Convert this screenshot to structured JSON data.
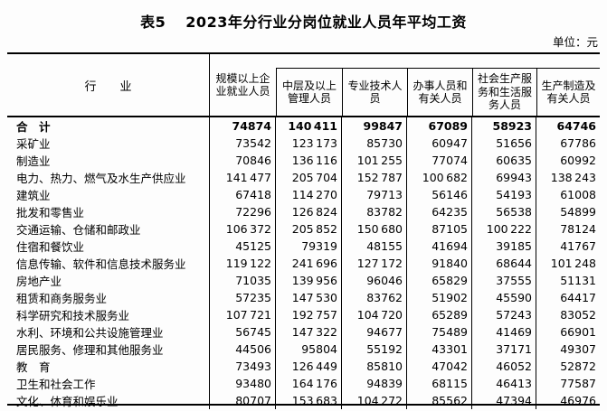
{
  "page": {
    "table_no": "表5",
    "title": "2023年分行业分岗位就业人员年平均工资",
    "unit_label": "单位：元"
  },
  "table": {
    "columns": [
      "行　　业",
      "规模以上企业就业人员",
      "中层及以上管理人员",
      "专业技术人员",
      "办事人员和有关人员",
      "社会生产服务和生活服务人员",
      "生产制造及有关人员"
    ],
    "rows": [
      {
        "industry": "合　计",
        "total": true,
        "values": [
          74874,
          140411,
          99847,
          67089,
          58923,
          64746
        ]
      },
      {
        "industry": "采矿业",
        "values": [
          73542,
          123173,
          85730,
          60947,
          51656,
          67786
        ]
      },
      {
        "industry": "制造业",
        "values": [
          70846,
          136116,
          101255,
          77074,
          60635,
          60992
        ]
      },
      {
        "industry": "电力、热力、燃气及水生产供应业",
        "values": [
          141477,
          205704,
          152787,
          100682,
          69943,
          138243
        ]
      },
      {
        "industry": "建筑业",
        "values": [
          67418,
          114270,
          79713,
          56146,
          54193,
          61008
        ]
      },
      {
        "industry": "批发和零售业",
        "values": [
          72296,
          126824,
          83782,
          64235,
          56538,
          54899
        ]
      },
      {
        "industry": "交通运输、仓储和邮政业",
        "values": [
          106372,
          205852,
          150680,
          87105,
          100222,
          78124
        ]
      },
      {
        "industry": "住宿和餐饮业",
        "values": [
          45125,
          79319,
          48155,
          41694,
          39185,
          41767
        ]
      },
      {
        "industry": "信息传输、软件和信息技术服务业",
        "values": [
          119122,
          241696,
          127172,
          91840,
          68644,
          101248
        ]
      },
      {
        "industry": "房地产业",
        "values": [
          71035,
          139956,
          96046,
          65829,
          37555,
          51131
        ]
      },
      {
        "industry": "租赁和商务服务业",
        "values": [
          57235,
          147530,
          83762,
          51902,
          45590,
          64417
        ]
      },
      {
        "industry": "科学研究和技术服务业",
        "values": [
          107721,
          192757,
          104720,
          65289,
          57243,
          83052
        ]
      },
      {
        "industry": "水利、环境和公共设施管理业",
        "values": [
          56745,
          147322,
          94677,
          75489,
          41469,
          66901
        ]
      },
      {
        "industry": "居民服务、修理和其他服务业",
        "values": [
          44506,
          95804,
          55192,
          43301,
          37171,
          49307
        ]
      },
      {
        "industry": "教　育",
        "values": [
          73493,
          126449,
          85810,
          47042,
          46052,
          52872
        ]
      },
      {
        "industry": "卫生和社会工作",
        "values": [
          93480,
          164176,
          94839,
          68115,
          46413,
          77587
        ]
      },
      {
        "industry": "文化、体育和娱乐业",
        "values": [
          80707,
          153683,
          104272,
          85562,
          47394,
          46976
        ]
      }
    ]
  }
}
